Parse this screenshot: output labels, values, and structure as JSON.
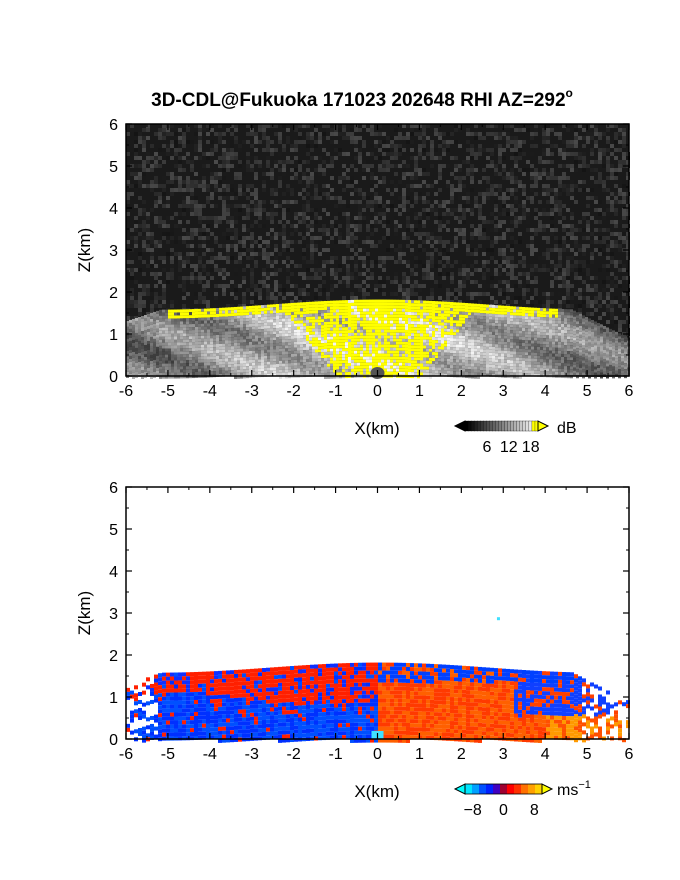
{
  "figure": {
    "title": "3D-CDL@Fukuoka 171023 202648 RHI AZ=292",
    "title_degree": "o"
  },
  "chart_data": [
    {
      "type": "heatmap",
      "name": "reflectivity",
      "xlabel": "X(km)",
      "ylabel": "Z(km)",
      "xlim": [
        -6,
        6
      ],
      "ylim": [
        0,
        6
      ],
      "x_ticks": [
        "-6",
        "-5",
        "-4",
        "-3",
        "-2",
        "-1",
        "0",
        "1",
        "2",
        "3",
        "4",
        "5",
        "6"
      ],
      "y_ticks": [
        "0",
        "1",
        "2",
        "3",
        "4",
        "5",
        "6"
      ],
      "grid": false,
      "echo_top_km": 1.7,
      "colorbar": {
        "unit": "dB",
        "tick_labels": [
          "6",
          "12",
          "18"
        ],
        "range": [
          0,
          20
        ],
        "colors": [
          "#000000",
          "#ffffff",
          "#ffff00"
        ]
      }
    },
    {
      "type": "heatmap",
      "name": "doppler-velocity",
      "xlabel": "X(km)",
      "ylabel": "Z(km)",
      "xlim": [
        -6,
        6
      ],
      "ylim": [
        0,
        6
      ],
      "x_ticks": [
        "-6",
        "-5",
        "-4",
        "-3",
        "-2",
        "-1",
        "0",
        "1",
        "2",
        "3",
        "4",
        "5",
        "6"
      ],
      "y_ticks": [
        "0",
        "1",
        "2",
        "3",
        "4",
        "5",
        "6"
      ],
      "grid": false,
      "echo_top_km": 1.7,
      "colorbar": {
        "unit": "ms",
        "unit_exponent": "−1",
        "tick_labels": [
          "−8",
          "0",
          "8"
        ],
        "range": [
          -10,
          10
        ],
        "colors": [
          "#00ffff",
          "#0033ff",
          "#ff0000",
          "#ffa500",
          "#ffff00"
        ]
      }
    }
  ]
}
